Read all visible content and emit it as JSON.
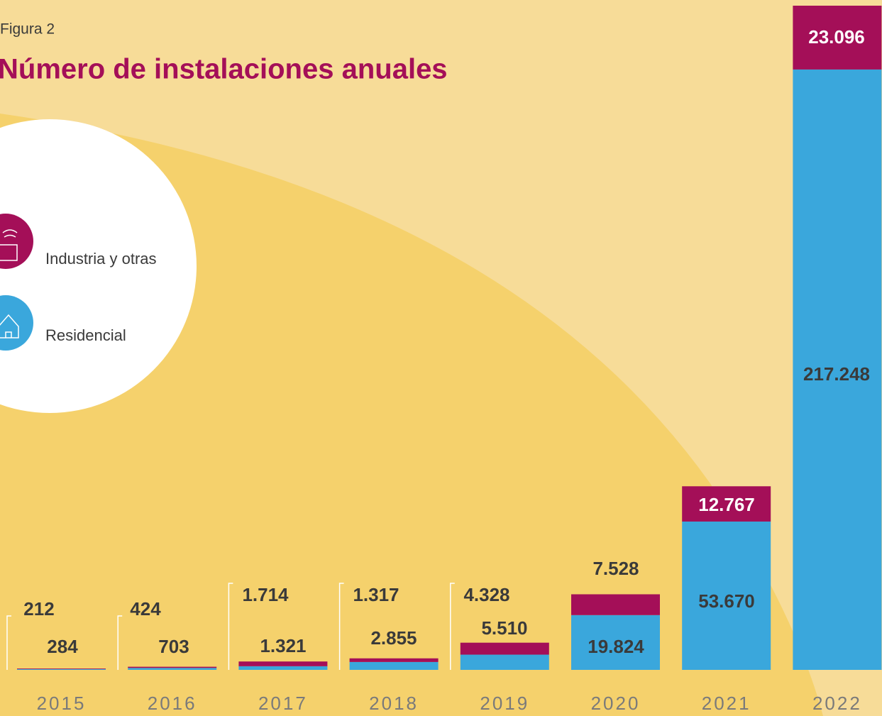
{
  "chart_data": {
    "type": "stacked_bar",
    "subtitle": "Figura 2",
    "title": "Número de instalaciones anuales",
    "categories": [
      "2015",
      "2016",
      "2017",
      "2018",
      "2019",
      "2020",
      "2021",
      "2022"
    ],
    "series": [
      {
        "name": "Industria y otras",
        "color": "#a40f58",
        "values": [
          212,
          424,
          1714,
          1317,
          4328,
          7528,
          12767,
          23096
        ],
        "value_labels": [
          "212",
          "424",
          "1.714",
          "1.317",
          "4.328",
          "7.528",
          "12.767",
          "23.096"
        ]
      },
      {
        "name": "Residencial",
        "color": "#3aa7dc",
        "values": [
          284,
          703,
          1321,
          2855,
          5510,
          19824,
          53670,
          217248
        ],
        "value_labels": [
          "284",
          "703",
          "1.321",
          "2.855",
          "5.510",
          "19.824",
          "53.670",
          "217.248"
        ]
      }
    ]
  }
}
